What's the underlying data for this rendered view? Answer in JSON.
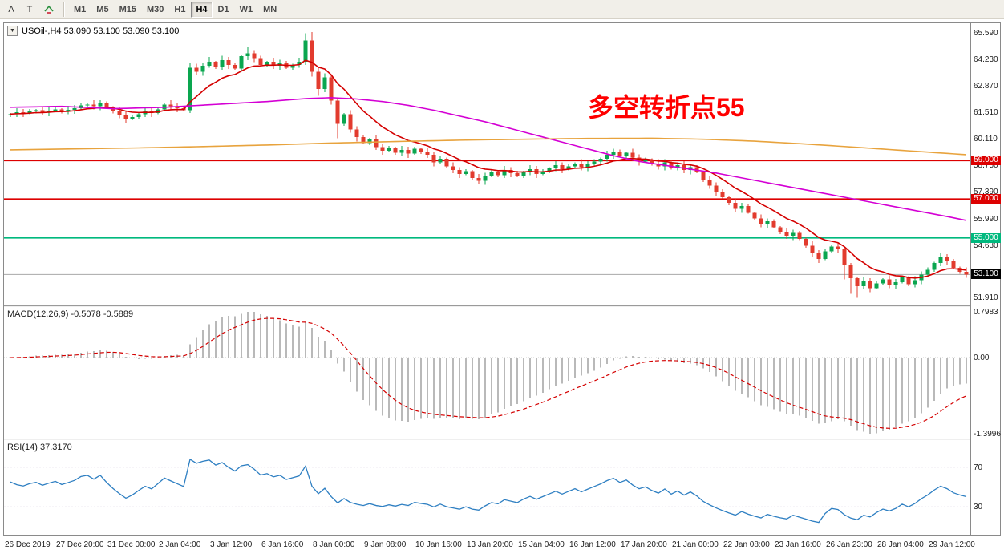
{
  "toolbar": {
    "buttons": [
      "A",
      "T"
    ],
    "timeframes": [
      "M1",
      "M5",
      "M15",
      "M30",
      "H1",
      "H4",
      "D1",
      "W1",
      "MN"
    ],
    "active_timeframe": "H4"
  },
  "icons": {
    "collapse": "▼"
  },
  "chart": {
    "title": "USOil-,H4  53.090 53.100 53.090 53.100",
    "annotation": "多空转折点55",
    "annotation_color": "#ff0000",
    "price_axis": [
      65.59,
      64.23,
      62.87,
      61.51,
      60.11,
      58.75,
      57.39,
      55.99,
      54.63,
      51.91
    ],
    "macd_axis": [
      "0.7983",
      "0.00",
      "-1.3996"
    ],
    "rsi_axis": [
      "70",
      "30"
    ]
  },
  "indicators": {
    "macd": {
      "label": "MACD(12,26,9) -0.5078 -0.5889"
    },
    "rsi": {
      "label": "RSI(14) 37.3170"
    }
  },
  "time_axis": [
    "26 Dec 2019",
    "27 Dec 20:00",
    "31 Dec 00:00",
    "2 Jan 04:00",
    "3 Jan 12:00",
    "6 Jan 16:00",
    "8 Jan 00:00",
    "9 Jan 08:00",
    "10 Jan 16:00",
    "13 Jan 20:00",
    "15 Jan 04:00",
    "16 Jan 12:00",
    "17 Jan 20:00",
    "21 Jan 00:00",
    "22 Jan 08:00",
    "23 Jan 16:00",
    "26 Jan 23:00",
    "28 Jan 04:00",
    "29 Jan 12:00"
  ],
  "chart_data": {
    "type": "candlestick",
    "symbol": "USOil-",
    "timeframe": "H4",
    "current_ohlc": "53.090 53.100 53.090 53.100",
    "price_range": [
      51.5,
      66.1
    ],
    "first_open": 61.35,
    "closes": [
      61.4,
      61.5,
      61.45,
      61.55,
      61.6,
      61.5,
      61.58,
      61.65,
      61.55,
      61.62,
      61.7,
      61.85,
      61.9,
      61.8,
      61.95,
      61.75,
      61.55,
      61.35,
      61.15,
      61.25,
      61.4,
      61.55,
      61.45,
      61.65,
      61.9,
      61.8,
      61.7,
      61.6,
      63.8,
      63.6,
      63.9,
      64.1,
      63.85,
      64.2,
      63.95,
      63.75,
      64.4,
      64.55,
      64.3,
      63.95,
      64.1,
      63.9,
      64.05,
      63.8,
      63.95,
      64.1,
      65.2,
      63.6,
      62.7,
      63.3,
      62.1,
      60.9,
      61.4,
      60.6,
      60.2,
      59.9,
      60.1,
      59.7,
      59.5,
      59.65,
      59.4,
      59.55,
      59.35,
      59.6,
      59.45,
      59.3,
      58.9,
      59.1,
      58.7,
      58.5,
      58.3,
      58.45,
      58.1,
      57.95,
      58.2,
      58.4,
      58.25,
      58.5,
      58.35,
      58.2,
      58.4,
      58.55,
      58.3,
      58.45,
      58.6,
      58.75,
      58.55,
      58.7,
      58.85,
      58.65,
      58.8,
      58.95,
      59.1,
      59.3,
      59.45,
      59.25,
      59.4,
      59.15,
      58.95,
      59.05,
      58.85,
      58.7,
      58.9,
      58.6,
      58.75,
      58.5,
      58.65,
      58.4,
      58.0,
      57.7,
      57.4,
      57.1,
      56.8,
      56.5,
      56.65,
      56.3,
      56.0,
      55.7,
      55.85,
      55.55,
      55.3,
      55.1,
      55.25,
      54.95,
      54.6,
      54.2,
      53.9,
      54.3,
      54.55,
      54.4,
      53.6,
      52.9,
      52.5,
      52.75,
      52.4,
      52.65,
      52.85,
      52.55,
      52.7,
      52.95,
      52.6,
      52.8,
      53.1,
      53.35,
      53.7,
      54.0,
      53.8,
      53.45,
      53.25,
      53.1
    ],
    "candle_overrides": {
      "28": [
        61.6,
        64.05,
        61.45,
        63.8
      ],
      "31": [
        63.9,
        64.35,
        63.8,
        64.1
      ],
      "37": [
        64.4,
        64.85,
        64.2,
        64.55
      ],
      "46": [
        64.1,
        65.59,
        63.95,
        65.2
      ],
      "47": [
        65.2,
        65.64,
        63.35,
        63.6
      ],
      "48": [
        63.6,
        63.8,
        62.35,
        62.7
      ],
      "50": [
        63.3,
        63.4,
        61.9,
        62.1
      ],
      "51": [
        62.1,
        62.2,
        60.15,
        60.9
      ],
      "130": [
        54.4,
        54.5,
        52.85,
        53.6
      ],
      "131": [
        53.6,
        53.7,
        52.1,
        52.9
      ],
      "132": [
        52.9,
        53.0,
        51.9,
        52.5
      ]
    },
    "candle_colors": {
      "up": "#0aa64f",
      "down": "#e23b2e"
    },
    "hlines": [
      {
        "price": 59.0,
        "label": "59.000",
        "color": "#dd0000"
      },
      {
        "price": 57.0,
        "label": "57.000",
        "color": "#dd0000"
      },
      {
        "price": 55.0,
        "label": "55.000",
        "color": "#00b97e"
      }
    ],
    "current_price": {
      "price": 53.1,
      "label": "53.100",
      "badge_color": "#000000",
      "line_color": "#a8a8a8"
    },
    "ma": {
      "fast": {
        "period": 10,
        "color": "#d40000"
      },
      "mid": {
        "color": "#d400d4",
        "anchors": [
          [
            0,
            61.75
          ],
          [
            8,
            61.8
          ],
          [
            16,
            61.68
          ],
          [
            24,
            61.75
          ],
          [
            32,
            61.9
          ],
          [
            40,
            62.05
          ],
          [
            46,
            62.2
          ],
          [
            50,
            62.25
          ],
          [
            54,
            62.18
          ],
          [
            58,
            62.05
          ],
          [
            62,
            61.85
          ],
          [
            66,
            61.6
          ],
          [
            70,
            61.3
          ],
          [
            74,
            61.0
          ],
          [
            78,
            60.65
          ],
          [
            82,
            60.3
          ],
          [
            86,
            59.95
          ],
          [
            90,
            59.6
          ],
          [
            94,
            59.25
          ],
          [
            98,
            58.95
          ],
          [
            102,
            58.75
          ],
          [
            106,
            58.55
          ],
          [
            110,
            58.35
          ],
          [
            114,
            58.1
          ],
          [
            118,
            57.85
          ],
          [
            122,
            57.6
          ],
          [
            126,
            57.35
          ],
          [
            130,
            57.1
          ],
          [
            134,
            56.85
          ],
          [
            138,
            56.6
          ],
          [
            142,
            56.35
          ],
          [
            146,
            56.1
          ],
          [
            149,
            55.9
          ]
        ]
      },
      "slow": {
        "color": "#e8a33d",
        "anchors": [
          [
            0,
            59.55
          ],
          [
            10,
            59.6
          ],
          [
            20,
            59.65
          ],
          [
            30,
            59.72
          ],
          [
            40,
            59.8
          ],
          [
            50,
            59.9
          ],
          [
            60,
            59.98
          ],
          [
            70,
            60.05
          ],
          [
            80,
            60.1
          ],
          [
            90,
            60.14
          ],
          [
            100,
            60.15
          ],
          [
            108,
            60.1
          ],
          [
            116,
            60.0
          ],
          [
            124,
            59.85
          ],
          [
            132,
            59.68
          ],
          [
            140,
            59.5
          ],
          [
            149,
            59.3
          ]
        ]
      }
    },
    "macd": {
      "fast": 12,
      "slow": 26,
      "signal": 9,
      "value": -0.5078,
      "signal_value": -0.5889,
      "axis_max": 0.7983,
      "axis_min": -1.3996,
      "histogram_color": "#b9b9b9",
      "signal_color": "#d40000"
    },
    "rsi": {
      "period": 14,
      "value": 37.317,
      "levels": [
        70,
        30
      ],
      "scale_range": [
        3,
        97
      ],
      "color": "#2e7fc2",
      "level_color": "#b4aac6"
    }
  }
}
